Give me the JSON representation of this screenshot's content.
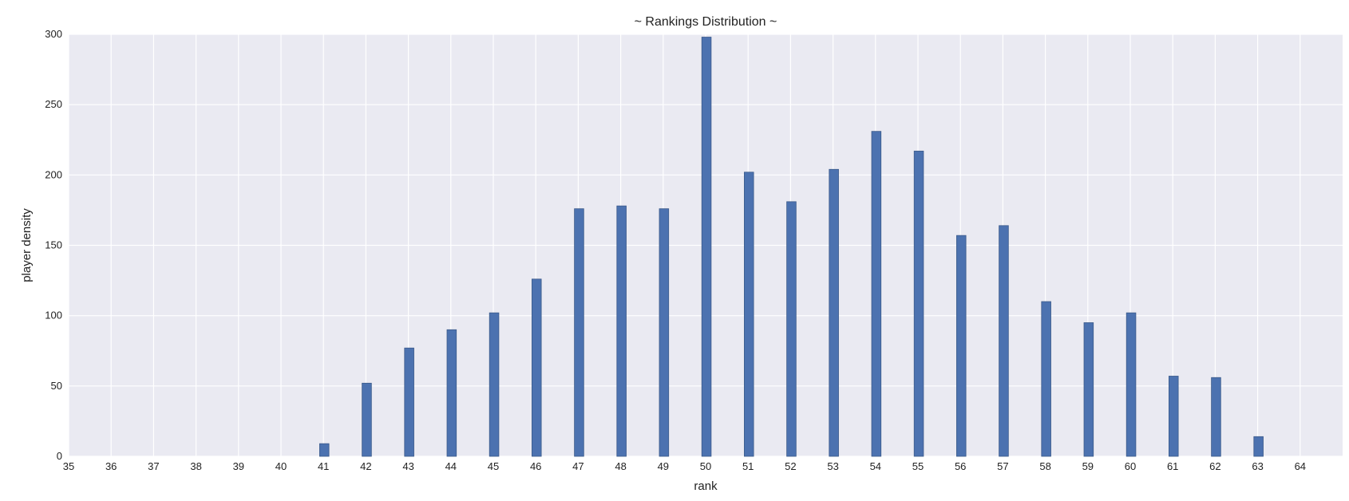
{
  "chart_data": {
    "type": "bar",
    "title": "~ Rankings Distribution ~",
    "xlabel": "rank",
    "ylabel": "player density",
    "xlim": [
      35,
      65
    ],
    "ylim": [
      0,
      300
    ],
    "xticks": [
      35,
      36,
      37,
      38,
      39,
      40,
      41,
      42,
      43,
      44,
      45,
      46,
      47,
      48,
      49,
      50,
      51,
      52,
      53,
      54,
      55,
      56,
      57,
      58,
      59,
      60,
      61,
      62,
      63,
      64
    ],
    "yticks": [
      0,
      50,
      100,
      150,
      200,
      250,
      300
    ],
    "grid": true,
    "colors": {
      "bar": "#4c72b0",
      "background": "#eaeaf2",
      "grid": "#ffffff"
    },
    "x": [
      41,
      42,
      43,
      44,
      45,
      46,
      47,
      48,
      49,
      50,
      51,
      52,
      53,
      54,
      55,
      56,
      57,
      58,
      59,
      60,
      61,
      62,
      63
    ],
    "values": [
      9,
      52,
      77,
      90,
      102,
      126,
      176,
      178,
      176,
      298,
      202,
      181,
      204,
      231,
      217,
      157,
      164,
      110,
      95,
      102,
      57,
      56,
      14
    ]
  }
}
